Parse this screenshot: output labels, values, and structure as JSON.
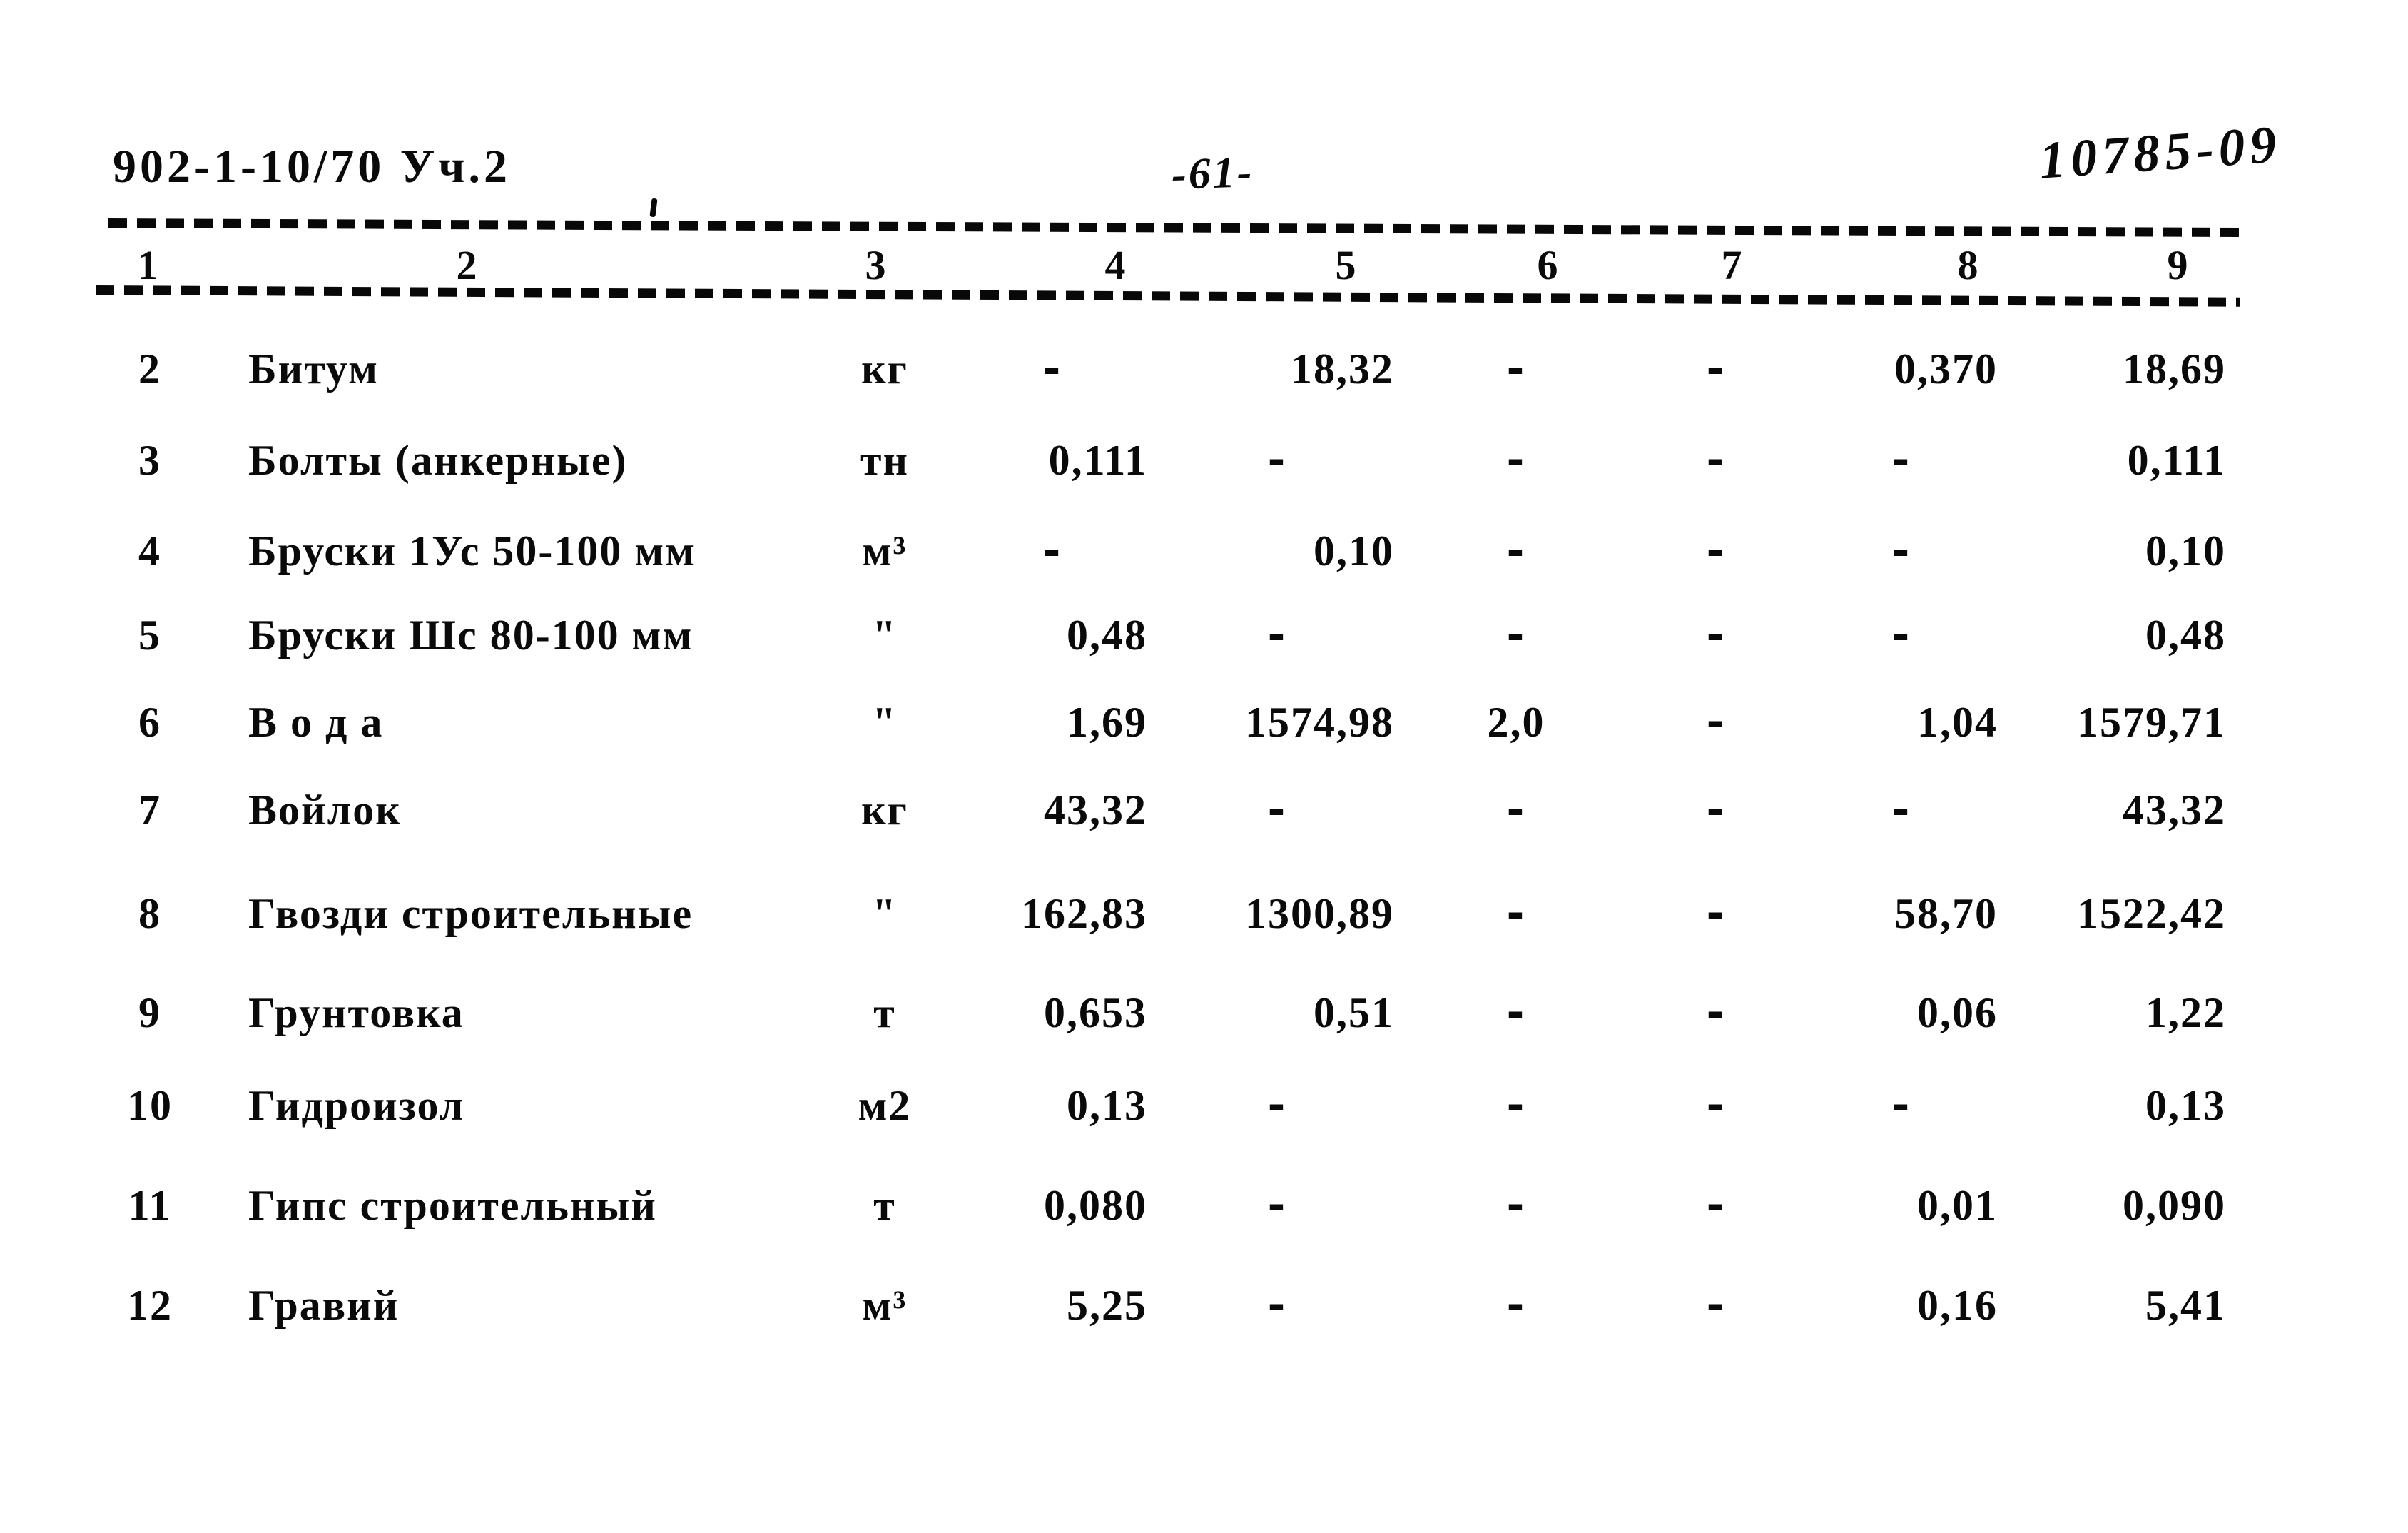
{
  "page": {
    "doc_number": "902-1-10/70 Уч.2",
    "page_number": "-61-",
    "handwritten_code": "10785-09"
  },
  "table": {
    "column_numbers": [
      "1",
      "2",
      "3",
      "4",
      "5",
      "6",
      "7",
      "8",
      "9"
    ],
    "rows": [
      {
        "num": "2",
        "name": "Битум",
        "unit": "кг",
        "c4": "-",
        "c5": "18,32",
        "c6": "-",
        "c7": "-",
        "c8": "0,370",
        "c9": "18,69"
      },
      {
        "num": "3",
        "name": "Болты (анкерные)",
        "unit": "тн",
        "c4": "0,111",
        "c5": "-",
        "c6": "-",
        "c7": "-",
        "c8": "-",
        "c9": "0,111"
      },
      {
        "num": "4",
        "name": "Бруски 1Ус 50-100 мм",
        "unit": "м³",
        "c4": "-",
        "c5": "0,10",
        "c6": "-",
        "c7": "-",
        "c8": "-",
        "c9": "0,10"
      },
      {
        "num": "5",
        "name": "Бруски Шс 80-100 мм",
        "unit": "\"",
        "c4": "0,48",
        "c5": "-",
        "c6": "-",
        "c7": "-",
        "c8": "-",
        "c9": "0,48"
      },
      {
        "num": "6",
        "name": "В о д а",
        "unit": "\"",
        "c4": "1,69",
        "c5": "1574,98",
        "c6": "2,0",
        "c7": "-",
        "c8": "1,04",
        "c9": "1579,71"
      },
      {
        "num": "7",
        "name": "Войлок",
        "unit": "кг",
        "c4": "43,32",
        "c5": "-",
        "c6": "-",
        "c7": "-",
        "c8": "-",
        "c9": "43,32"
      },
      {
        "num": "8",
        "name": "Гвозди строительные",
        "unit": "\"",
        "c4": "162,83",
        "c5": "1300,89",
        "c6": "-",
        "c7": "-",
        "c8": "58,70",
        "c9": "1522,42"
      },
      {
        "num": "9",
        "name": "Грунтовка",
        "unit": "т",
        "c4": "0,653",
        "c5": "0,51",
        "c6": "-",
        "c7": "-",
        "c8": "0,06",
        "c9": "1,22"
      },
      {
        "num": "10",
        "name": "Гидроизол",
        "unit": "м2",
        "c4": "0,13",
        "c5": "-",
        "c6": "-",
        "c7": "-",
        "c8": "-",
        "c9": "0,13"
      },
      {
        "num": "11",
        "name": "Гипс строительный",
        "unit": "т",
        "c4": "0,080",
        "c5": "-",
        "c6": "-",
        "c7": "-",
        "c8": "0,01",
        "c9": "0,090"
      },
      {
        "num": "12",
        "name": "Гравий",
        "unit": "м³",
        "c4": "5,25",
        "c5": "-",
        "c6": "-",
        "c7": "-",
        "c8": "0,16",
        "c9": "5,41"
      }
    ]
  }
}
